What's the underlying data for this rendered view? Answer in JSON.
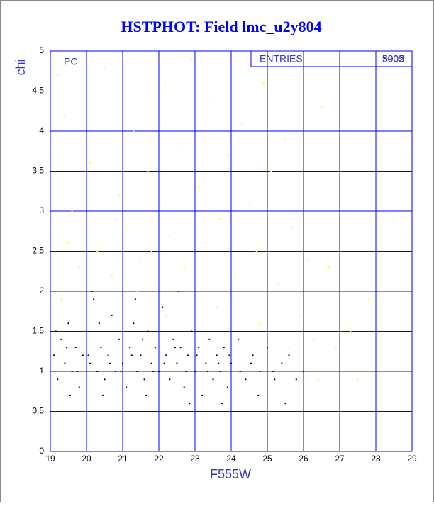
{
  "chart_data": {
    "type": "scatter",
    "title": "HSTPHOT: Field lmc_u2y804",
    "x_label": "F555W",
    "y_label": "chi",
    "annotation": "PC",
    "stats": {
      "label": "ENTRIES",
      "values": [
        3902,
        5005
      ]
    },
    "xlim": [
      19,
      29
    ],
    "xticks": [
      19,
      20,
      21,
      22,
      23,
      24,
      25,
      26,
      27,
      28,
      29
    ],
    "ylim": [
      0,
      5
    ],
    "yticks": [
      0,
      0.5,
      1,
      1.5,
      2,
      2.5,
      3,
      3.5,
      4,
      4.5,
      5
    ],
    "grid": true,
    "grid_color": "#0000ff",
    "series": [
      {
        "color": "#ffff00",
        "x": [
          19.2,
          19.4,
          19.6,
          19.8,
          20.1,
          20.3,
          20.5,
          20.7,
          20.9,
          21.1,
          21.3,
          21.5,
          21.7,
          21.9,
          22.1,
          22.3,
          22.5,
          22.7,
          22.9,
          23.1,
          23.3,
          23.5,
          23.7,
          23.9,
          24.1,
          24.3,
          24.5,
          24.7,
          24.9,
          25.1,
          25.3,
          25.5,
          25.7,
          25.9,
          26.1,
          26.3,
          26.5,
          26.7,
          26.9,
          27.3,
          27.5,
          27.8,
          28.5,
          19.3,
          20.2,
          21.4,
          22.2,
          23.6,
          24.8,
          25.6,
          26.4,
          19.5,
          20.8,
          21.8
        ],
        "y": [
          4.7,
          4.2,
          3.0,
          2.3,
          3.6,
          2.5,
          4.8,
          2.2,
          3.2,
          2.8,
          4.0,
          2.4,
          3.5,
          2.1,
          4.5,
          2.7,
          3.8,
          2.3,
          4.9,
          3.3,
          2.6,
          4.4,
          2.9,
          3.7,
          2.2,
          4.1,
          3.1,
          2.5,
          4.6,
          3.5,
          2.1,
          3.9,
          2.8,
          1.7,
          2.4,
          1.4,
          4.3,
          2.3,
          1.3,
          1.5,
          0.9,
          1.9,
          2.9,
          1.9,
          1.8,
          2.0,
          1.7,
          1.8,
          1.6,
          1.3,
          0.9,
          2.6,
          2.9,
          2.5
        ]
      },
      {
        "color": "#000000",
        "x": [
          19.1,
          19.2,
          19.3,
          19.4,
          19.5,
          19.6,
          19.7,
          19.8,
          19.9,
          20.0,
          20.1,
          20.2,
          20.3,
          20.4,
          20.5,
          20.6,
          20.7,
          20.8,
          20.9,
          21.0,
          21.1,
          21.2,
          21.3,
          21.4,
          21.5,
          21.6,
          21.7,
          21.8,
          21.9,
          22.0,
          22.1,
          22.2,
          22.3,
          22.4,
          22.5,
          22.6,
          22.7,
          22.8,
          22.9,
          23.0,
          23.1,
          23.2,
          23.3,
          23.4,
          23.5,
          23.6,
          23.7,
          23.8,
          23.9,
          24.0,
          24.2,
          24.4,
          24.6,
          24.8,
          25.0,
          25.2,
          25.4,
          25.6,
          25.8,
          26.0,
          19.15,
          19.45,
          19.75,
          20.05,
          20.35,
          20.65,
          20.95,
          21.25,
          21.55,
          21.85,
          22.15,
          22.45,
          22.75,
          23.05,
          23.35,
          23.65,
          23.95,
          24.25,
          24.55,
          25.15,
          19.55,
          20.45,
          21.65,
          22.85,
          23.75,
          24.75,
          25.5,
          20.15,
          21.35,
          22.55
        ],
        "y": [
          1.2,
          0.9,
          1.4,
          1.1,
          1.6,
          1.0,
          1.3,
          0.8,
          1.2,
          1.5,
          1.1,
          1.9,
          1.0,
          1.3,
          0.9,
          1.2,
          1.7,
          1.0,
          1.4,
          1.1,
          0.8,
          1.3,
          1.6,
          1.0,
          1.2,
          0.9,
          1.5,
          1.1,
          1.3,
          1.0,
          1.8,
          1.2,
          0.9,
          1.4,
          1.1,
          1.3,
          0.8,
          1.2,
          1.5,
          1.0,
          1.3,
          0.7,
          1.1,
          1.4,
          0.9,
          1.2,
          1.0,
          1.3,
          0.8,
          1.1,
          1.4,
          0.9,
          1.2,
          1.0,
          1.3,
          0.9,
          1.1,
          1.2,
          0.9,
          1.0,
          1.5,
          1.3,
          1.0,
          1.2,
          1.6,
          1.1,
          1.0,
          1.2,
          1.4,
          1.0,
          1.1,
          1.3,
          1.0,
          1.2,
          1.0,
          1.1,
          1.2,
          1.0,
          1.1,
          1.0,
          0.7,
          0.7,
          0.7,
          0.6,
          0.6,
          0.7,
          0.6,
          2.0,
          1.9,
          2.0
        ]
      }
    ]
  }
}
